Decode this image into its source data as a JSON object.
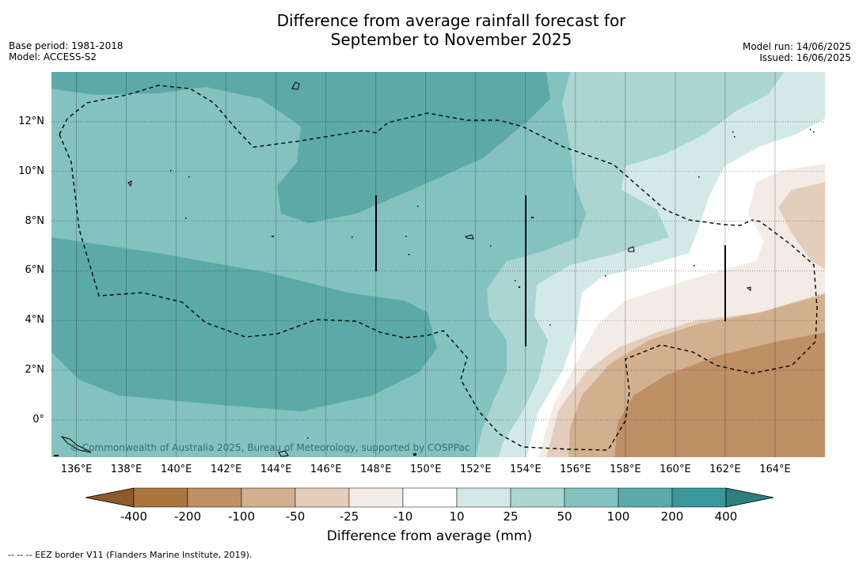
{
  "title_line1": "Difference from average rainfall forecast for",
  "title_line2": "September to November 2025",
  "base_period": "Base period: 1981-2018",
  "model": "Model: ACCESS-S2",
  "model_run": "Model run: 14/06/2025",
  "issued": "Issued: 16/06/2025",
  "copyright": "© Commonwealth of Australia 2025, Bureau of Meteorology, supported by COSPPac",
  "footer": "--  --  -- EEZ border V11 (Flanders Marine Institute, 2019).",
  "map": {
    "lon_range": [
      135.0,
      166.0
    ],
    "lat_range": [
      -1.5,
      14.0
    ],
    "lat_ticks": [
      {
        "value": 12,
        "label": "12°N"
      },
      {
        "value": 10,
        "label": "10°N"
      },
      {
        "value": 8,
        "label": "8°N"
      },
      {
        "value": 6,
        "label": "6°N"
      },
      {
        "value": 4,
        "label": "4°N"
      },
      {
        "value": 2,
        "label": "2°N"
      },
      {
        "value": 0,
        "label": "0°"
      }
    ],
    "lon_ticks": [
      {
        "value": 136,
        "label": "136°E"
      },
      {
        "value": 138,
        "label": "138°E"
      },
      {
        "value": 140,
        "label": "140°E"
      },
      {
        "value": 142,
        "label": "142°E"
      },
      {
        "value": 144,
        "label": "144°E"
      },
      {
        "value": 146,
        "label": "146°E"
      },
      {
        "value": 148,
        "label": "148°E"
      },
      {
        "value": 150,
        "label": "150°E"
      },
      {
        "value": 152,
        "label": "152°E"
      },
      {
        "value": 154,
        "label": "154°E"
      },
      {
        "value": 156,
        "label": "156°E"
      },
      {
        "value": 158,
        "label": "158°E"
      },
      {
        "value": 160,
        "label": "160°E"
      },
      {
        "value": 162,
        "label": "162°E"
      },
      {
        "value": 164,
        "label": "164°E"
      }
    ],
    "gridlines": true
  },
  "colorbar": {
    "label": "Difference from average (mm)",
    "ticks": [
      "-400",
      "-200",
      "-100",
      "-50",
      "-25",
      "-10",
      "10",
      "25",
      "50",
      "100",
      "200",
      "400"
    ],
    "colors": {
      "below_min": "#8c5a2b",
      "bins": [
        "#ab7540",
        "#bf9066",
        "#d2b08f",
        "#e4cebb",
        "#f3ebe5",
        "#ffffff",
        "#d3e9e8",
        "#aad5d3",
        "#84c2bf",
        "#5baaa8",
        "#39999a"
      ],
      "above_max": "#2e7f80"
    }
  }
}
